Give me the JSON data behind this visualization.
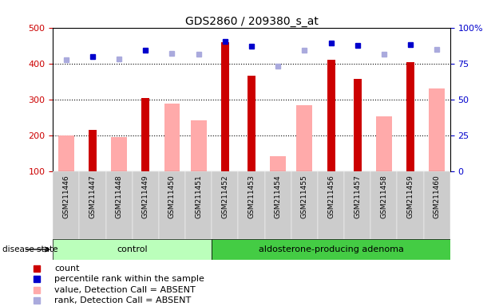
{
  "title": "GDS2860 / 209380_s_at",
  "samples": [
    "GSM211446",
    "GSM211447",
    "GSM211448",
    "GSM211449",
    "GSM211450",
    "GSM211451",
    "GSM211452",
    "GSM211453",
    "GSM211454",
    "GSM211455",
    "GSM211456",
    "GSM211457",
    "GSM211458",
    "GSM211459",
    "GSM211460"
  ],
  "count_values": [
    null,
    215,
    null,
    305,
    null,
    null,
    460,
    365,
    null,
    null,
    410,
    358,
    null,
    404,
    null
  ],
  "pink_values": [
    200,
    null,
    195,
    null,
    288,
    243,
    null,
    null,
    143,
    283,
    null,
    null,
    253,
    null,
    330
  ],
  "blue_dark_values": [
    null,
    420,
    null,
    438,
    null,
    null,
    462,
    449,
    null,
    null,
    457,
    450,
    null,
    453,
    null
  ],
  "blue_light_values": [
    410,
    null,
    413,
    null,
    427,
    425,
    null,
    null,
    393,
    436,
    null,
    null,
    425,
    null,
    440
  ],
  "ylim_left": [
    100,
    500
  ],
  "ylim_right": [
    0,
    100
  ],
  "yticks_left": [
    100,
    200,
    300,
    400,
    500
  ],
  "yticks_right": [
    0,
    25,
    50,
    75,
    100
  ],
  "control_count": 6,
  "disease_label": "control",
  "adenoma_label": "aldosterone-producing adenoma",
  "disease_state_label": "disease state",
  "legend_items": [
    {
      "label": "count",
      "color": "#cc0000"
    },
    {
      "label": "percentile rank within the sample",
      "color": "#0000cc"
    },
    {
      "label": "value, Detection Call = ABSENT",
      "color": "#ffaaaa"
    },
    {
      "label": "rank, Detection Call = ABSENT",
      "color": "#aaaadd"
    }
  ],
  "control_bg": "#bbffbb",
  "adenoma_bg": "#44cc44",
  "tick_bg": "#cccccc",
  "pink_bar_width": 0.6,
  "red_bar_width": 0.3
}
